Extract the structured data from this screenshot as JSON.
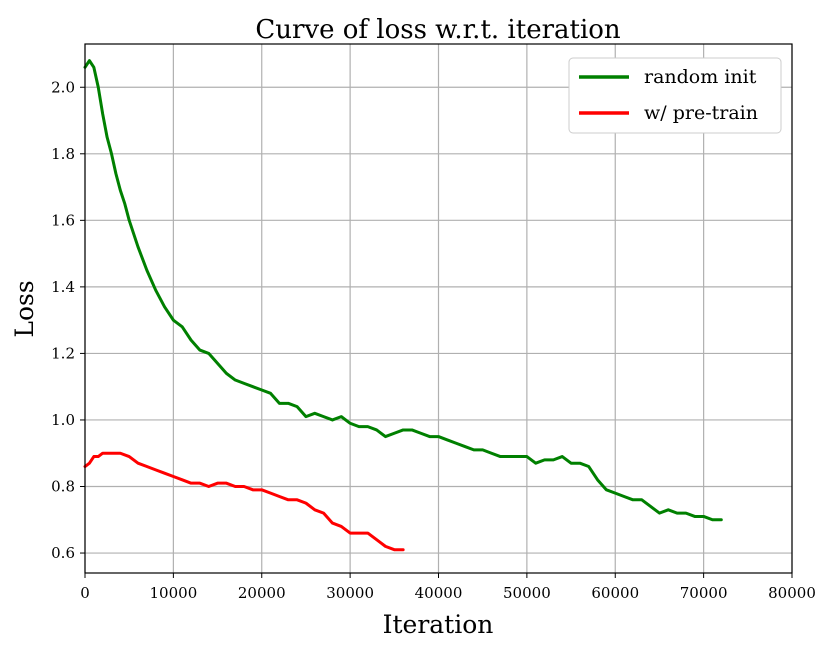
{
  "chart_data": {
    "type": "line",
    "title": "Curve of loss w.r.t. iteration",
    "xlabel": "Iteration",
    "ylabel": "Loss",
    "xlim": [
      0,
      80000
    ],
    "ylim": [
      0.54,
      2.13
    ],
    "xticks": [
      0,
      10000,
      20000,
      30000,
      40000,
      50000,
      60000,
      70000,
      80000
    ],
    "yticks": [
      0.6,
      0.8,
      1.0,
      1.2,
      1.4,
      1.6,
      1.8,
      2.0
    ],
    "xtick_labels": [
      "0",
      "10000",
      "20000",
      "30000",
      "40000",
      "50000",
      "60000",
      "70000",
      "80000"
    ],
    "ytick_labels": [
      "0.6",
      "0.8",
      "1.0",
      "1.2",
      "1.4",
      "1.6",
      "1.8",
      "2.0"
    ],
    "grid": true,
    "legend_position": "top-right",
    "series": [
      {
        "name": "random init",
        "color": "#008000",
        "x": [
          0,
          500,
          1000,
          1500,
          2000,
          2500,
          3000,
          3500,
          4000,
          4500,
          5000,
          6000,
          7000,
          8000,
          9000,
          10000,
          11000,
          12000,
          13000,
          14000,
          15000,
          16000,
          17000,
          18000,
          19000,
          20000,
          21000,
          22000,
          23000,
          24000,
          25000,
          26000,
          27000,
          28000,
          29000,
          30000,
          31000,
          32000,
          33000,
          34000,
          35000,
          36000,
          37000,
          38000,
          39000,
          40000,
          41000,
          42000,
          43000,
          44000,
          45000,
          46000,
          47000,
          48000,
          49000,
          50000,
          51000,
          52000,
          53000,
          54000,
          55000,
          56000,
          57000,
          58000,
          59000,
          60000,
          61000,
          62000,
          63000,
          64000,
          65000,
          66000,
          67000,
          68000,
          69000,
          70000,
          71000,
          72000
        ],
        "values": [
          2.06,
          2.08,
          2.06,
          2.0,
          1.92,
          1.85,
          1.8,
          1.74,
          1.69,
          1.65,
          1.6,
          1.52,
          1.45,
          1.39,
          1.34,
          1.3,
          1.28,
          1.24,
          1.21,
          1.2,
          1.17,
          1.14,
          1.12,
          1.11,
          1.1,
          1.09,
          1.08,
          1.05,
          1.05,
          1.04,
          1.01,
          1.02,
          1.01,
          1.0,
          1.01,
          0.99,
          0.98,
          0.98,
          0.97,
          0.95,
          0.96,
          0.97,
          0.97,
          0.96,
          0.95,
          0.95,
          0.94,
          0.93,
          0.92,
          0.91,
          0.91,
          0.9,
          0.89,
          0.89,
          0.89,
          0.89,
          0.87,
          0.88,
          0.88,
          0.89,
          0.87,
          0.87,
          0.86,
          0.82,
          0.79,
          0.78,
          0.77,
          0.76,
          0.76,
          0.74,
          0.72,
          0.73,
          0.72,
          0.72,
          0.71,
          0.71,
          0.7,
          0.7
        ]
      },
      {
        "name": "w/ pre-train",
        "color": "#ff0000",
        "x": [
          0,
          500,
          1000,
          1500,
          2000,
          2500,
          3000,
          3500,
          4000,
          5000,
          6000,
          7000,
          8000,
          9000,
          10000,
          11000,
          12000,
          13000,
          14000,
          15000,
          16000,
          17000,
          18000,
          19000,
          20000,
          21000,
          22000,
          23000,
          24000,
          25000,
          26000,
          27000,
          28000,
          29000,
          30000,
          31000,
          32000,
          33000,
          34000,
          35000,
          36000
        ],
        "values": [
          0.86,
          0.87,
          0.89,
          0.89,
          0.9,
          0.9,
          0.9,
          0.9,
          0.9,
          0.89,
          0.87,
          0.86,
          0.85,
          0.84,
          0.83,
          0.82,
          0.81,
          0.81,
          0.8,
          0.81,
          0.81,
          0.8,
          0.8,
          0.79,
          0.79,
          0.78,
          0.77,
          0.76,
          0.76,
          0.75,
          0.73,
          0.72,
          0.69,
          0.68,
          0.66,
          0.66,
          0.66,
          0.64,
          0.62,
          0.61,
          0.61
        ]
      }
    ]
  }
}
